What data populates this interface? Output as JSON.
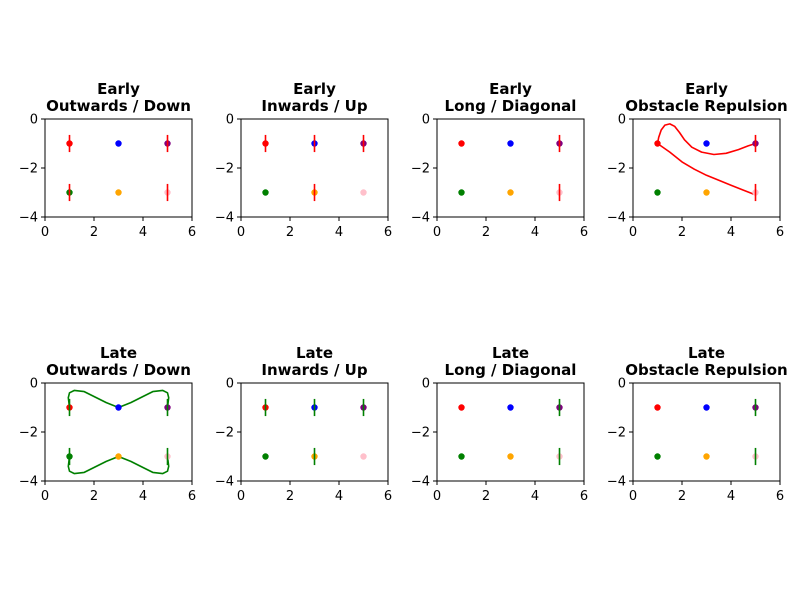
{
  "chart_data": [
    {
      "type": "scatter",
      "title": [
        "Early",
        "Outwards / Down"
      ],
      "xlim": [
        0,
        6
      ],
      "ylim": [
        -4,
        0
      ],
      "xticks": [
        0,
        2,
        4,
        6
      ],
      "yticks": [
        0,
        -2,
        -4
      ],
      "points": [
        {
          "x": 1,
          "y": -1,
          "color": "#ff0000"
        },
        {
          "x": 3,
          "y": -1,
          "color": "#0000ff"
        },
        {
          "x": 5,
          "y": -1,
          "color": "#800080"
        },
        {
          "x": 1,
          "y": -3,
          "color": "#008000"
        },
        {
          "x": 3,
          "y": -3,
          "color": "#ffa500"
        },
        {
          "x": 5,
          "y": -3,
          "color": "#ffc0cb"
        }
      ],
      "error_bars": [
        {
          "x": 1,
          "y": -1,
          "err": 0.35,
          "color": "#ff0000"
        },
        {
          "x": 5,
          "y": -1,
          "err": 0.35,
          "color": "#ff0000"
        },
        {
          "x": 1,
          "y": -3,
          "err": 0.35,
          "color": "#ff0000"
        },
        {
          "x": 5,
          "y": -3,
          "err": 0.35,
          "color": "#ff0000"
        }
      ],
      "paths": []
    },
    {
      "type": "scatter",
      "title": [
        "Early",
        "Inwards / Up"
      ],
      "xlim": [
        0,
        6
      ],
      "ylim": [
        -4,
        0
      ],
      "xticks": [
        0,
        2,
        4,
        6
      ],
      "yticks": [
        0,
        -2,
        -4
      ],
      "points": [
        {
          "x": 1,
          "y": -1,
          "color": "#ff0000"
        },
        {
          "x": 3,
          "y": -1,
          "color": "#0000ff"
        },
        {
          "x": 5,
          "y": -1,
          "color": "#800080"
        },
        {
          "x": 1,
          "y": -3,
          "color": "#008000"
        },
        {
          "x": 3,
          "y": -3,
          "color": "#ffa500"
        },
        {
          "x": 5,
          "y": -3,
          "color": "#ffc0cb"
        }
      ],
      "error_bars": [
        {
          "x": 1,
          "y": -1,
          "err": 0.35,
          "color": "#ff0000"
        },
        {
          "x": 3,
          "y": -1,
          "err": 0.35,
          "color": "#ff0000"
        },
        {
          "x": 5,
          "y": -1,
          "err": 0.35,
          "color": "#ff0000"
        },
        {
          "x": 3,
          "y": -3,
          "err": 0.35,
          "color": "#ff0000"
        }
      ],
      "paths": []
    },
    {
      "type": "scatter",
      "title": [
        "Early",
        "Long / Diagonal"
      ],
      "xlim": [
        0,
        6
      ],
      "ylim": [
        -4,
        0
      ],
      "xticks": [
        0,
        2,
        4,
        6
      ],
      "yticks": [
        0,
        -2,
        -4
      ],
      "points": [
        {
          "x": 1,
          "y": -1,
          "color": "#ff0000"
        },
        {
          "x": 3,
          "y": -1,
          "color": "#0000ff"
        },
        {
          "x": 5,
          "y": -1,
          "color": "#800080"
        },
        {
          "x": 1,
          "y": -3,
          "color": "#008000"
        },
        {
          "x": 3,
          "y": -3,
          "color": "#ffa500"
        },
        {
          "x": 5,
          "y": -3,
          "color": "#ffc0cb"
        }
      ],
      "error_bars": [
        {
          "x": 5,
          "y": -1,
          "err": 0.35,
          "color": "#ff0000"
        },
        {
          "x": 5,
          "y": -3,
          "err": 0.35,
          "color": "#ff0000"
        }
      ],
      "paths": []
    },
    {
      "type": "scatter",
      "title": [
        "Early",
        "Obstacle Repulsion"
      ],
      "xlim": [
        0,
        6
      ],
      "ylim": [
        -4,
        0
      ],
      "xticks": [
        0,
        2,
        4,
        6
      ],
      "yticks": [
        0,
        -2,
        -4
      ],
      "points": [
        {
          "x": 1,
          "y": -1,
          "color": "#ff0000"
        },
        {
          "x": 3,
          "y": -1,
          "color": "#0000ff"
        },
        {
          "x": 5,
          "y": -1,
          "color": "#800080"
        },
        {
          "x": 1,
          "y": -3,
          "color": "#008000"
        },
        {
          "x": 3,
          "y": -3,
          "color": "#ffa500"
        },
        {
          "x": 5,
          "y": -3,
          "color": "#ffc0cb"
        }
      ],
      "error_bars": [
        {
          "x": 5,
          "y": -1,
          "err": 0.35,
          "color": "#ff0000"
        },
        {
          "x": 5,
          "y": -3,
          "err": 0.35,
          "color": "#ff0000"
        }
      ],
      "paths": [
        {
          "color": "#ff0000",
          "points": [
            [
              1,
              -1
            ],
            [
              1.05,
              -0.75
            ],
            [
              1.15,
              -0.45
            ],
            [
              1.3,
              -0.25
            ],
            [
              1.5,
              -0.2
            ],
            [
              1.7,
              -0.3
            ],
            [
              1.9,
              -0.55
            ],
            [
              2.1,
              -0.85
            ],
            [
              2.4,
              -1.15
            ],
            [
              2.8,
              -1.35
            ],
            [
              3.3,
              -1.45
            ],
            [
              3.8,
              -1.4
            ],
            [
              4.3,
              -1.25
            ],
            [
              4.7,
              -1.1
            ],
            [
              5,
              -1
            ]
          ]
        },
        {
          "color": "#ff0000",
          "points": [
            [
              1,
              -1
            ],
            [
              1.5,
              -1.35
            ],
            [
              2,
              -1.75
            ],
            [
              2.5,
              -2.05
            ],
            [
              3,
              -2.3
            ],
            [
              3.5,
              -2.5
            ],
            [
              4,
              -2.7
            ],
            [
              4.5,
              -2.9
            ],
            [
              5,
              -3.1
            ]
          ]
        }
      ]
    },
    {
      "type": "scatter",
      "title": [
        "Late",
        "Outwards / Down"
      ],
      "xlim": [
        0,
        6
      ],
      "ylim": [
        -4,
        0
      ],
      "xticks": [
        0,
        2,
        4,
        6
      ],
      "yticks": [
        0,
        -2,
        -4
      ],
      "points": [
        {
          "x": 1,
          "y": -1,
          "color": "#ff0000"
        },
        {
          "x": 3,
          "y": -1,
          "color": "#0000ff"
        },
        {
          "x": 5,
          "y": -1,
          "color": "#800080"
        },
        {
          "x": 1,
          "y": -3,
          "color": "#008000"
        },
        {
          "x": 3,
          "y": -3,
          "color": "#ffa500"
        },
        {
          "x": 5,
          "y": -3,
          "color": "#ffc0cb"
        }
      ],
      "error_bars": [
        {
          "x": 1,
          "y": -1,
          "err": 0.35,
          "color": "#008000"
        },
        {
          "x": 5,
          "y": -1,
          "err": 0.35,
          "color": "#008000"
        },
        {
          "x": 1,
          "y": -3,
          "err": 0.35,
          "color": "#008000"
        },
        {
          "x": 5,
          "y": -3,
          "err": 0.35,
          "color": "#008000"
        }
      ],
      "paths": [
        {
          "color": "#008000",
          "points": [
            [
              1,
              -1
            ],
            [
              0.95,
              -0.6
            ],
            [
              1.0,
              -0.4
            ],
            [
              1.2,
              -0.3
            ],
            [
              1.6,
              -0.35
            ],
            [
              2.0,
              -0.55
            ],
            [
              2.5,
              -0.8
            ],
            [
              3,
              -1
            ],
            [
              3.5,
              -0.8
            ],
            [
              4.0,
              -0.55
            ],
            [
              4.4,
              -0.35
            ],
            [
              4.8,
              -0.3
            ],
            [
              5.0,
              -0.4
            ],
            [
              5.05,
              -0.6
            ],
            [
              5,
              -1
            ]
          ]
        },
        {
          "color": "#008000",
          "points": [
            [
              1,
              -3
            ],
            [
              0.95,
              -3.4
            ],
            [
              1.0,
              -3.6
            ],
            [
              1.2,
              -3.7
            ],
            [
              1.6,
              -3.65
            ],
            [
              2.0,
              -3.45
            ],
            [
              2.5,
              -3.2
            ],
            [
              3,
              -3
            ],
            [
              3.5,
              -3.2
            ],
            [
              4.0,
              -3.45
            ],
            [
              4.4,
              -3.65
            ],
            [
              4.8,
              -3.7
            ],
            [
              5.0,
              -3.6
            ],
            [
              5.05,
              -3.4
            ],
            [
              5,
              -3
            ]
          ]
        }
      ]
    },
    {
      "type": "scatter",
      "title": [
        "Late",
        "Inwards / Up"
      ],
      "xlim": [
        0,
        6
      ],
      "ylim": [
        -4,
        0
      ],
      "xticks": [
        0,
        2,
        4,
        6
      ],
      "yticks": [
        0,
        -2,
        -4
      ],
      "points": [
        {
          "x": 1,
          "y": -1,
          "color": "#ff0000"
        },
        {
          "x": 3,
          "y": -1,
          "color": "#0000ff"
        },
        {
          "x": 5,
          "y": -1,
          "color": "#800080"
        },
        {
          "x": 1,
          "y": -3,
          "color": "#008000"
        },
        {
          "x": 3,
          "y": -3,
          "color": "#ffa500"
        },
        {
          "x": 5,
          "y": -3,
          "color": "#ffc0cb"
        }
      ],
      "error_bars": [
        {
          "x": 1,
          "y": -1,
          "err": 0.35,
          "color": "#008000"
        },
        {
          "x": 3,
          "y": -1,
          "err": 0.35,
          "color": "#008000"
        },
        {
          "x": 5,
          "y": -1,
          "err": 0.35,
          "color": "#008000"
        },
        {
          "x": 3,
          "y": -3,
          "err": 0.35,
          "color": "#008000"
        }
      ],
      "paths": []
    },
    {
      "type": "scatter",
      "title": [
        "Late",
        "Long / Diagonal"
      ],
      "xlim": [
        0,
        6
      ],
      "ylim": [
        -4,
        0
      ],
      "xticks": [
        0,
        2,
        4,
        6
      ],
      "yticks": [
        0,
        -2,
        -4
      ],
      "points": [
        {
          "x": 1,
          "y": -1,
          "color": "#ff0000"
        },
        {
          "x": 3,
          "y": -1,
          "color": "#0000ff"
        },
        {
          "x": 5,
          "y": -1,
          "color": "#800080"
        },
        {
          "x": 1,
          "y": -3,
          "color": "#008000"
        },
        {
          "x": 3,
          "y": -3,
          "color": "#ffa500"
        },
        {
          "x": 5,
          "y": -3,
          "color": "#ffc0cb"
        }
      ],
      "error_bars": [
        {
          "x": 5,
          "y": -1,
          "err": 0.35,
          "color": "#008000"
        },
        {
          "x": 5,
          "y": -3,
          "err": 0.35,
          "color": "#008000"
        }
      ],
      "paths": []
    },
    {
      "type": "scatter",
      "title": [
        "Late",
        "Obstacle Repulsion"
      ],
      "xlim": [
        0,
        6
      ],
      "ylim": [
        -4,
        0
      ],
      "xticks": [
        0,
        2,
        4,
        6
      ],
      "yticks": [
        0,
        -2,
        -4
      ],
      "points": [
        {
          "x": 1,
          "y": -1,
          "color": "#ff0000"
        },
        {
          "x": 3,
          "y": -1,
          "color": "#0000ff"
        },
        {
          "x": 5,
          "y": -1,
          "color": "#800080"
        },
        {
          "x": 1,
          "y": -3,
          "color": "#008000"
        },
        {
          "x": 3,
          "y": -3,
          "color": "#ffa500"
        },
        {
          "x": 5,
          "y": -3,
          "color": "#ffc0cb"
        }
      ],
      "error_bars": [
        {
          "x": 5,
          "y": -1,
          "err": 0.35,
          "color": "#008000"
        },
        {
          "x": 5,
          "y": -3,
          "err": 0.35,
          "color": "#008000"
        }
      ],
      "paths": []
    }
  ]
}
